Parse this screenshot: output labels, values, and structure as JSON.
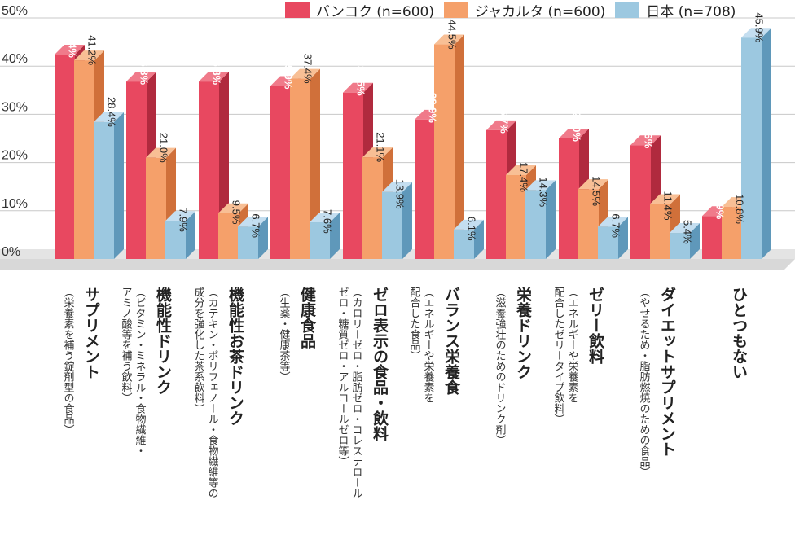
{
  "chart_data": {
    "type": "bar",
    "ylim": [
      0,
      50
    ],
    "yticks": [
      "0%",
      "10%",
      "20%",
      "30%",
      "40%",
      "50%"
    ],
    "legend_position": "top-right",
    "series": [
      {
        "name": "バンコク (n=600)",
        "color": "#e84860",
        "side_color": "#b02a3e",
        "top_color": "#f07a8a",
        "values": [
          42.4,
          36.8,
          36.8,
          35.9,
          34.5,
          28.9,
          26.7,
          25.0,
          23.6,
          8.9
        ]
      },
      {
        "name": "ジャカルタ (n=600)",
        "color": "#f5a06a",
        "side_color": "#d0703a",
        "top_color": "#f8bf95",
        "values": [
          41.2,
          21.0,
          9.5,
          37.4,
          21.1,
          44.5,
          17.4,
          14.5,
          11.4,
          10.8
        ]
      },
      {
        "name": "日本 (n=708)",
        "color": "#9cc8e0",
        "side_color": "#5f98ba",
        "top_color": "#c4def0",
        "values": [
          28.4,
          7.9,
          6.7,
          7.6,
          13.9,
          6.1,
          14.3,
          6.7,
          5.4,
          45.9
        ]
      }
    ],
    "value_labels": [
      [
        "42.4%",
        "36.8%",
        "36.8%",
        "35.9%",
        "34.5%",
        "28.9%",
        "26.7%",
        "25.0%",
        "23.6%",
        "8.9%"
      ],
      [
        "41.2%",
        "21.0%",
        "9.5%",
        "37.4%",
        "21.1%",
        "44.5%",
        "17.4%",
        "14.5%",
        "11.4%",
        "10.8%"
      ],
      [
        "28.4%",
        "7.9%",
        "6.7%",
        "7.6%",
        "13.9%",
        "6.1%",
        "14.3%",
        "6.7%",
        "5.4%",
        "45.9%"
      ]
    ],
    "categories": [
      {
        "name": "サプリメント",
        "note": [
          "（栄養素を補う錠剤型の食品）"
        ]
      },
      {
        "name": "機能性ドリンク",
        "note": [
          "（ビタミン・ミネラル・食物繊維・",
          "アミノ酸等を補う飲料）"
        ]
      },
      {
        "name": "機能性お茶ドリンク",
        "note": [
          "（カテキン・ポリフェノール・食物繊維等の",
          "成分を強化した茶系飲料）"
        ]
      },
      {
        "name": "健康食品",
        "note": [
          "（生薬・健康茶等）"
        ]
      },
      {
        "name": "ゼロ表示の食品・飲料",
        "note": [
          "（カロリーゼロ・脂肪ゼロ・コレステロール",
          "ゼロ・糖質ゼロ・アルコールゼロ等）"
        ]
      },
      {
        "name": "バランス栄養食",
        "note": [
          "（エネルギーや栄養素を",
          "配合した食品）"
        ]
      },
      {
        "name": "栄養ドリンク",
        "note": [
          "（滋養強壮のためのドリンク剤）"
        ]
      },
      {
        "name": "ゼリー飲料",
        "note": [
          "（エネルギーや栄養素を",
          "配合したゼリータイプ飲料）"
        ]
      },
      {
        "name": "ダイエットサプリメント",
        "note": [
          "（やせるため・脂肪燃焼のための食品）"
        ]
      },
      {
        "name": "ひとつもない",
        "note": []
      }
    ]
  }
}
